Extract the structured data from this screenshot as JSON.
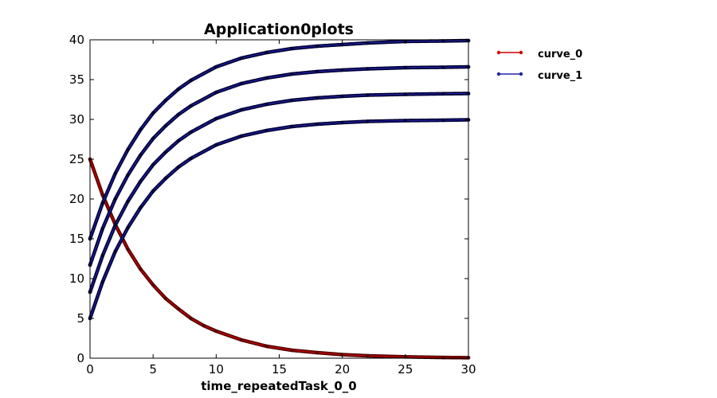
{
  "chart_data": {
    "type": "line",
    "title": "Application0plots",
    "xlabel": "time_repeatedTask_0_0",
    "ylabel": "",
    "xlim": [
      0,
      30
    ],
    "ylim": [
      0,
      40
    ],
    "xticks": [
      0,
      5,
      10,
      15,
      20,
      25,
      30
    ],
    "yticks": [
      0,
      5,
      10,
      15,
      20,
      25,
      30,
      35,
      40
    ],
    "grid": false,
    "legend_position": "outside-right",
    "series": [
      {
        "name": "curve_0",
        "color": "#cc0000",
        "marker_color": "#550000",
        "x": [
          0,
          1,
          2,
          3,
          4,
          5,
          6,
          7,
          8,
          9,
          10,
          12,
          14,
          16,
          18,
          20,
          22,
          25,
          28,
          30
        ],
        "y": [
          25,
          20.5,
          16.8,
          13.7,
          11.2,
          9.2,
          7.5,
          6.2,
          5.0,
          4.1,
          3.4,
          2.3,
          1.5,
          1.0,
          0.7,
          0.45,
          0.3,
          0.17,
          0.09,
          0.06
        ]
      },
      {
        "name": "curve_1",
        "color": "#2222aa",
        "marker_color": "#000033",
        "lines": [
          {
            "x": [
              0,
              1,
              2,
              3,
              4,
              5,
              6,
              7,
              8,
              10,
              12,
              14,
              16,
              18,
              20,
              22,
              25,
              28,
              30
            ],
            "y": [
              15,
              19.5,
              23.2,
              26.2,
              28.7,
              30.8,
              32.4,
              33.8,
              34.9,
              36.6,
              37.7,
              38.4,
              38.9,
              39.2,
              39.4,
              39.6,
              39.8,
              39.85,
              39.9
            ]
          },
          {
            "x": [
              0,
              1,
              2,
              3,
              4,
              5,
              6,
              7,
              8,
              10,
              12,
              14,
              16,
              18,
              20,
              22,
              25,
              28,
              30
            ],
            "y": [
              11.7,
              16.3,
              20.0,
              23.0,
              25.5,
              27.6,
              29.2,
              30.6,
              31.7,
              33.4,
              34.5,
              35.2,
              35.7,
              36.0,
              36.2,
              36.35,
              36.5,
              36.55,
              36.6
            ]
          },
          {
            "x": [
              0,
              1,
              2,
              3,
              4,
              5,
              6,
              7,
              8,
              10,
              12,
              14,
              16,
              18,
              20,
              22,
              25,
              28,
              30
            ],
            "y": [
              8.3,
              12.9,
              16.7,
              19.7,
              22.2,
              24.3,
              25.9,
              27.3,
              28.4,
              30.1,
              31.2,
              31.9,
              32.4,
              32.7,
              32.9,
              33.05,
              33.15,
              33.22,
              33.25
            ]
          },
          {
            "x": [
              0,
              1,
              2,
              3,
              4,
              5,
              6,
              7,
              8,
              10,
              12,
              14,
              16,
              18,
              20,
              22,
              25,
              28,
              30
            ],
            "y": [
              5,
              9.6,
              13.4,
              16.4,
              18.9,
              21.0,
              22.6,
              24.0,
              25.1,
              26.8,
              27.9,
              28.6,
              29.1,
              29.4,
              29.6,
              29.75,
              29.85,
              29.9,
              29.95
            ]
          }
        ]
      }
    ]
  }
}
